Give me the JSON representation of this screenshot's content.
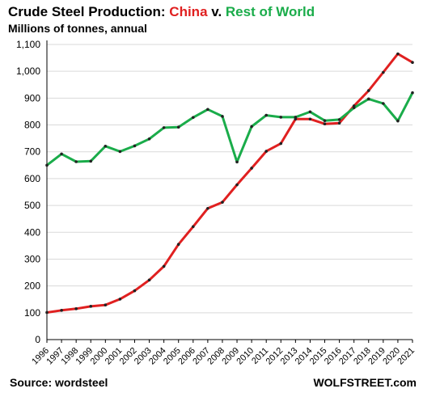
{
  "header": {
    "title_prefix": "Crude Steel Production: ",
    "title_series_a": "China",
    "title_mid": " v. ",
    "title_series_b": "Rest of World",
    "subtitle": "Millions of tonnes, annual"
  },
  "footer": {
    "source": "Source: wordsteel",
    "credit": "WOLFSTREET.com"
  },
  "colors": {
    "china": "#e02020",
    "rest_of_world": "#1aac4a",
    "grid": "#d9d9d9",
    "axis": "#000000",
    "marker": "#222222"
  },
  "chart_data": {
    "type": "line",
    "title": "Crude Steel Production: China v. Rest of World",
    "ylabel": "Millions of tonnes, annual",
    "xlabel": "",
    "ylim": [
      0,
      1100
    ],
    "yticks": [
      0,
      100,
      200,
      300,
      400,
      500,
      600,
      700,
      800,
      900,
      1000,
      1100
    ],
    "ytick_labels": [
      "0",
      "100",
      "200",
      "300",
      "400",
      "500",
      "600",
      "700",
      "800",
      "900",
      "1,000",
      "1,100"
    ],
    "grid": "horizontal",
    "x": [
      "1996",
      "1997",
      "1998",
      "1999",
      "2000",
      "2001",
      "2002",
      "2003",
      "2004",
      "2005",
      "2006",
      "2007",
      "2008",
      "2009",
      "2010",
      "2011",
      "2012",
      "2013",
      "2014",
      "2015",
      "2016",
      "2017",
      "2018",
      "2019",
      "2020",
      "2021"
    ],
    "series": [
      {
        "name": "China",
        "color": "#e02020",
        "values": [
          101,
          109,
          115,
          124,
          129,
          151,
          182,
          222,
          273,
          355,
          421,
          489,
          512,
          577,
          639,
          702,
          731,
          822,
          822,
          804,
          807,
          871,
          928,
          996,
          1065,
          1033
        ]
      },
      {
        "name": "Rest of World",
        "color": "#1aac4a",
        "values": [
          650,
          692,
          663,
          665,
          721,
          701,
          722,
          748,
          790,
          792,
          828,
          858,
          832,
          662,
          794,
          836,
          829,
          829,
          849,
          816,
          820,
          864,
          897,
          880,
          815,
          920
        ]
      }
    ]
  }
}
